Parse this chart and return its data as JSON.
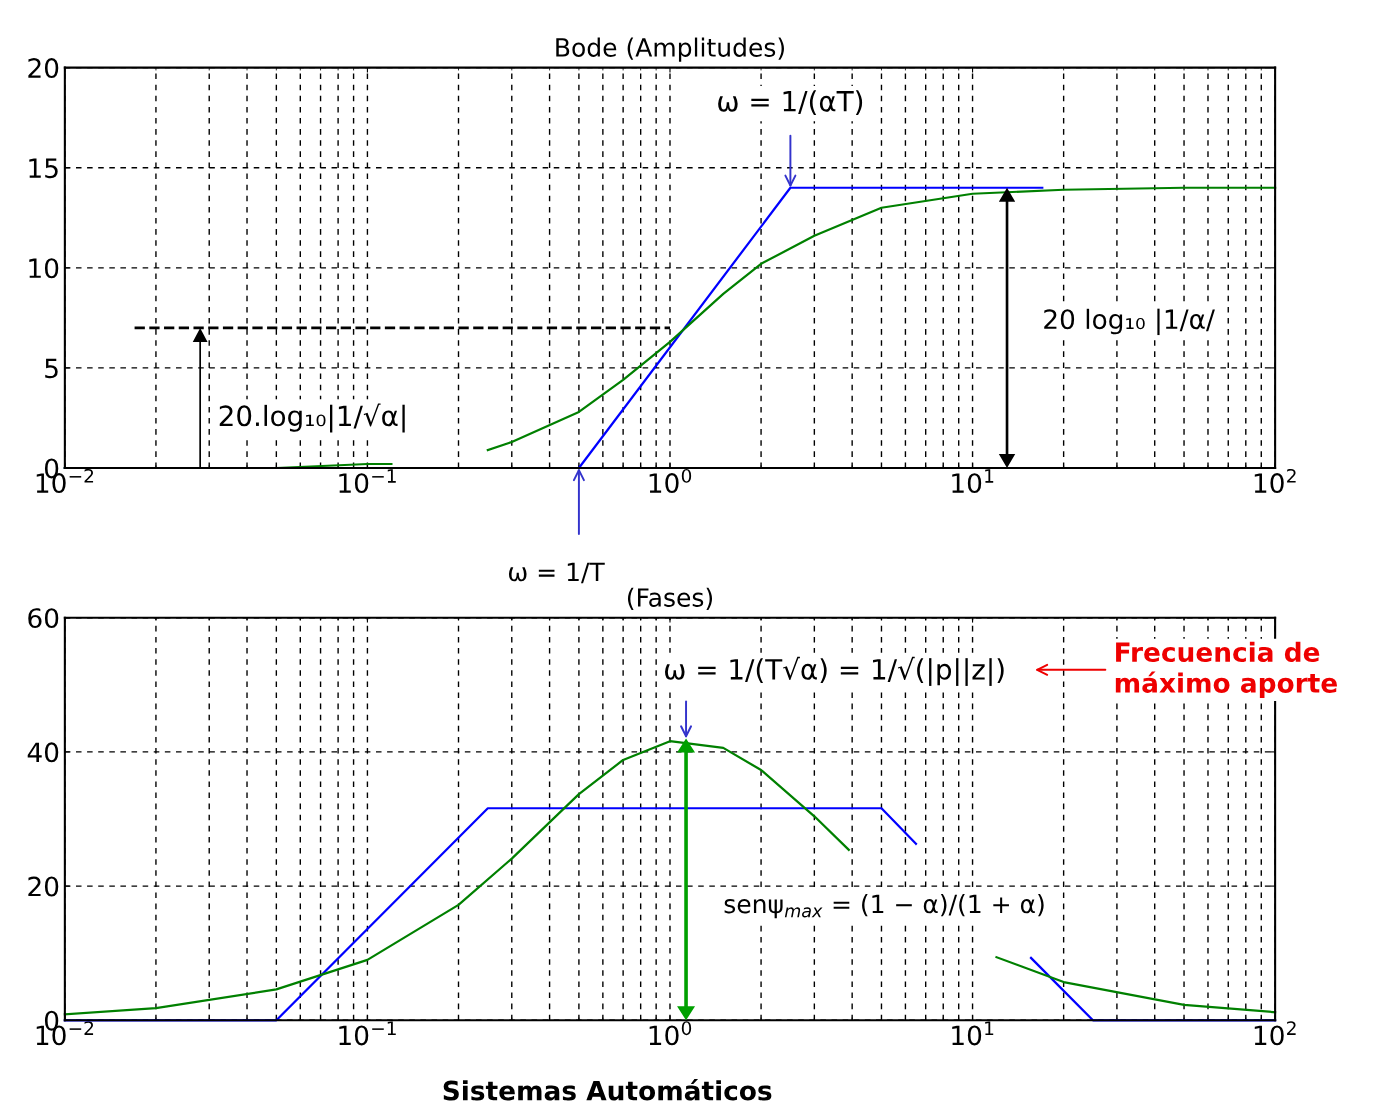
{
  "chart_data": [
    {
      "type": "line",
      "title": "Bode (Amplitudes)",
      "log": "x",
      "grid": true,
      "xlim": [
        0.01,
        100
      ],
      "ylim": [
        0,
        20
      ],
      "xticks": [
        {
          "value": 0.01,
          "label": "10$^{−2}$"
        },
        {
          "value": 0.1,
          "label": "10$^{−1}$"
        },
        {
          "value": 1,
          "label": "10$^{0}$"
        },
        {
          "value": 10,
          "label": "10$^{1}$"
        },
        {
          "value": 100,
          "label": "10$^{2}$"
        }
      ],
      "yticks": [
        0,
        5,
        10,
        15,
        20
      ],
      "series": [
        {
          "color": "#0000ff",
          "x": [
            0.01,
            0.5,
            2.5,
            17
          ],
          "values": [
            0,
            0,
            14,
            14
          ]
        },
        {
          "color": "#008000",
          "x": [
            0.01,
            0.05,
            0.1,
            0.12,
            0.18,
            0.25,
            0.3,
            0.5,
            0.7,
            1,
            1.5,
            2,
            3,
            5,
            10,
            20,
            50,
            100
          ],
          "values": [
            0,
            0,
            0.2,
            0.2,
            null,
            0.9,
            1.3,
            2.8,
            4.4,
            6.3,
            8.7,
            10.2,
            11.6,
            13,
            13.7,
            13.9,
            14,
            14
          ]
        },
        {
          "color": "#000000",
          "line_style": "dashed",
          "x": [
            0.017,
            1
          ],
          "values": [
            7,
            7
          ]
        }
      ],
      "annotations": [
        {
          "text": "ω = 1/(αT)",
          "x": 2.5,
          "y": 14
        },
        "20.log₁₀|1/√α|",
        "20 log₁₀ |1/α/",
        {
          "text": "ω = 1/T",
          "x": 0.5,
          "y": 0
        }
      ]
    },
    {
      "type": "line",
      "title": "(Fases)",
      "log": "x",
      "grid": true,
      "xlim": [
        0.01,
        100
      ],
      "ylim": [
        0,
        60
      ],
      "xticks": [
        {
          "value": 0.01,
          "label": "10$^{−2}$"
        },
        {
          "value": 0.1,
          "label": "10$^{−1}$"
        },
        {
          "value": 1,
          "label": "10$^{0}$"
        },
        {
          "value": 10,
          "label": "10$^{1}$"
        },
        {
          "value": 100,
          "label": "10$^{2}$"
        }
      ],
      "yticks": [
        0,
        20,
        40,
        60
      ],
      "series": [
        {
          "color": "#0000ff",
          "x": [
            0.01,
            0.05,
            0.25,
            5,
            6.5,
            10,
            15.6,
            25,
            100
          ],
          "values": [
            0,
            0,
            31.6,
            31.6,
            26.3,
            null,
            9.3,
            0,
            0
          ]
        },
        {
          "color": "#008000",
          "x": [
            0.01,
            0.02,
            0.05,
            0.1,
            0.2,
            0.3,
            0.5,
            0.7,
            1,
            1.5,
            2,
            3,
            3.9,
            6,
            12,
            20,
            50,
            100
          ],
          "values": [
            0.9,
            1.8,
            4.6,
            9,
            17.2,
            24.1,
            33.7,
            38.8,
            41.6,
            40.6,
            37.3,
            30.4,
            25.4,
            null,
            9.4,
            5.7,
            2.3,
            1.2
          ]
        }
      ],
      "annotations": [
        {
          "text": "ω = 1/(T√α) = 1/√(|p||z|)",
          "x": 1.13,
          "y": 42
        },
        "senψ$_{max}$ = (1 − α)/(1 + α)",
        "Frecuencia de\nmáximo aporte",
        "Sistemas Automáticos"
      ]
    }
  ]
}
